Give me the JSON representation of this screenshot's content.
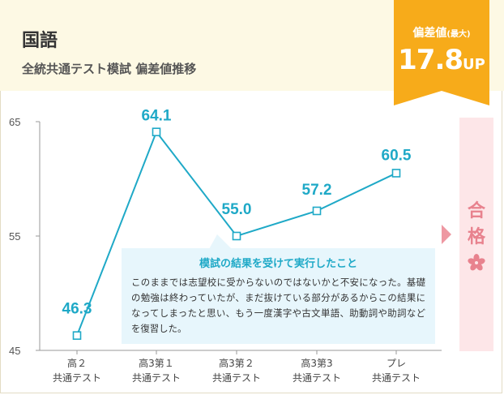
{
  "header": {
    "subject": "国語",
    "subtitle": "全統共通テスト模試 偏差値推移"
  },
  "badge": {
    "label": "偏差値",
    "label_note": "(最大)",
    "value": "17.8",
    "unit": "UP",
    "color": "#f7ab1a"
  },
  "pass": {
    "text_1": "合",
    "text_2": "格",
    "icon": "sakura-icon",
    "color": "#e8828e"
  },
  "note": {
    "title": "模試の結果を受けて実行したこと",
    "body": "このままでは志望校に受からないのではないかと不安になった。基礎の勉強は終わっていたが、まだ抜けている部分があるからこの結果になってしまったと思い、もう一度漢字や古文単語、助動詞や助詞などを復習した。"
  },
  "chart_data": {
    "type": "line",
    "categories": [
      [
        "高２",
        "共通テスト"
      ],
      [
        "高3第１",
        "共通テスト"
      ],
      [
        "高3第２",
        "共通テスト"
      ],
      [
        "高3第3",
        "共通テスト"
      ],
      [
        "プレ",
        "共通テスト"
      ]
    ],
    "series": [
      {
        "values": [
          46.3,
          64.1,
          55.0,
          57.2,
          60.5
        ],
        "labels": [
          "46.3",
          "64.1",
          "55.0",
          "57.2",
          "60.5"
        ]
      }
    ],
    "yticks": [
      45,
      55,
      65
    ],
    "ylim": [
      45,
      65
    ],
    "grid": false,
    "line_color": "#1fa9c7",
    "label_color": "#1fa9c7"
  }
}
